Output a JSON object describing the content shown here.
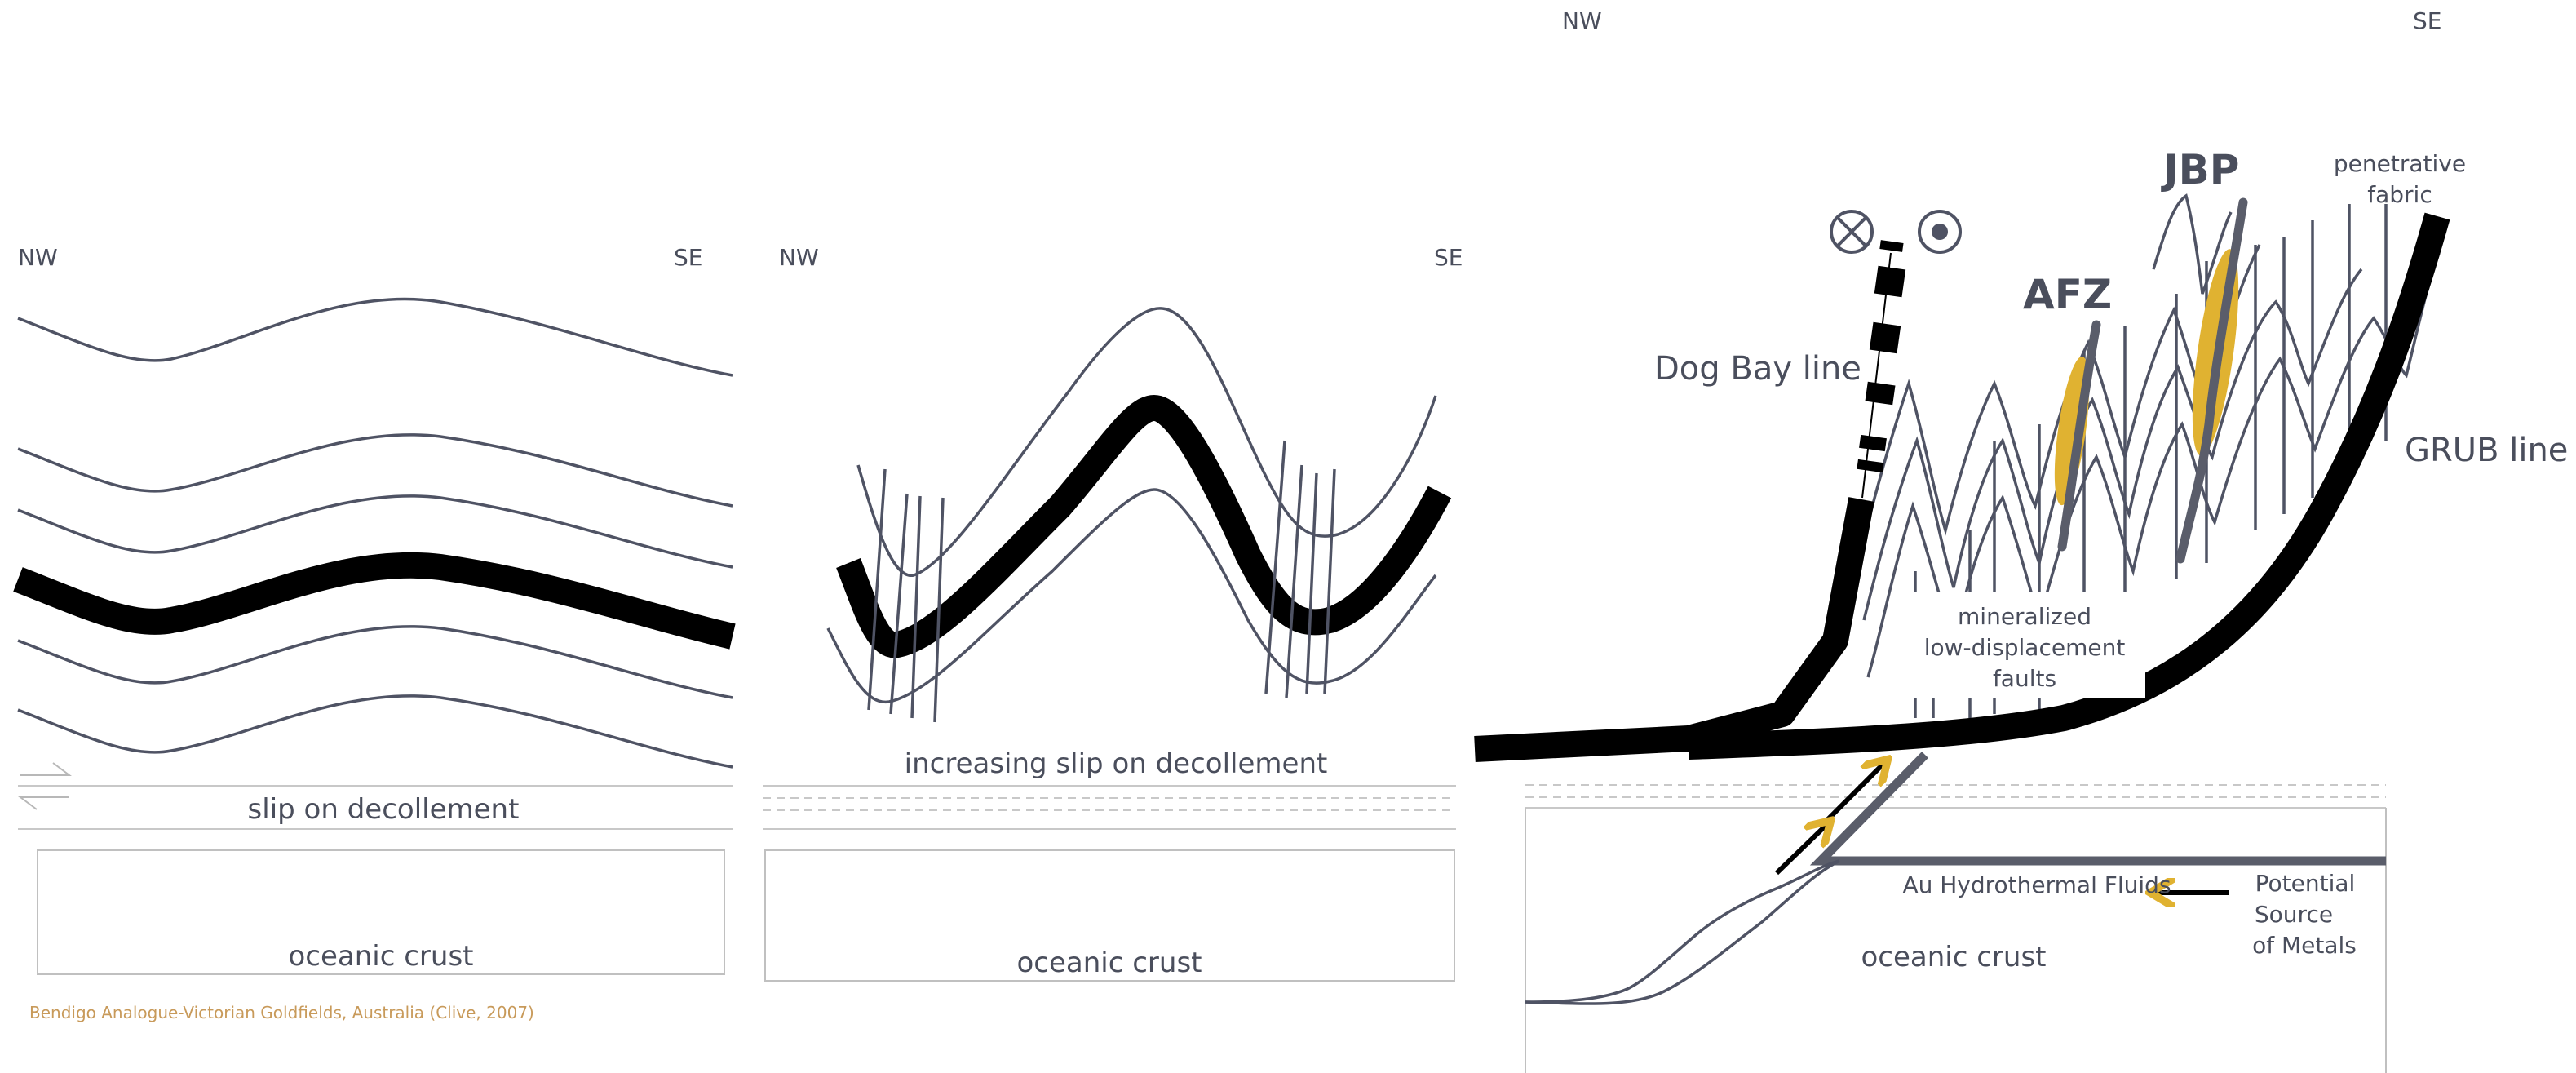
{
  "caption": "Bendigo Analogue-Victorian Goldfields, Australia (Clive, 2007)",
  "panel1": {
    "nw": "NW",
    "se": "SE",
    "slip": "slip on decollement",
    "crust": "oceanic crust"
  },
  "panel2": {
    "nw": "NW",
    "se": "SE",
    "slip": "increasing  slip on decollement",
    "crust": "oceanic crust"
  },
  "panel3": {
    "nw": "NW",
    "se": "SE",
    "jbp": "JBP",
    "afz": "AFZ",
    "dog_bay": "Dog Bay line",
    "grub": "GRUB line",
    "fabric_1": "penetrative",
    "fabric_2": "fabric",
    "faults_1": "mineralized",
    "faults_2": "low-displacement",
    "faults_3": "faults",
    "fluids": "Au Hydrothermal Fluids",
    "source_1": "Potential",
    "source_2": "Source",
    "source_3": "of Metals",
    "crust": "oceanic crust"
  },
  "colors": {
    "line": "#4f5364",
    "bold": "#000000",
    "gold": "#e0b231",
    "caption": "#c89a5a"
  },
  "symbols": [
    "into-page-symbol",
    "out-of-page-symbol"
  ]
}
